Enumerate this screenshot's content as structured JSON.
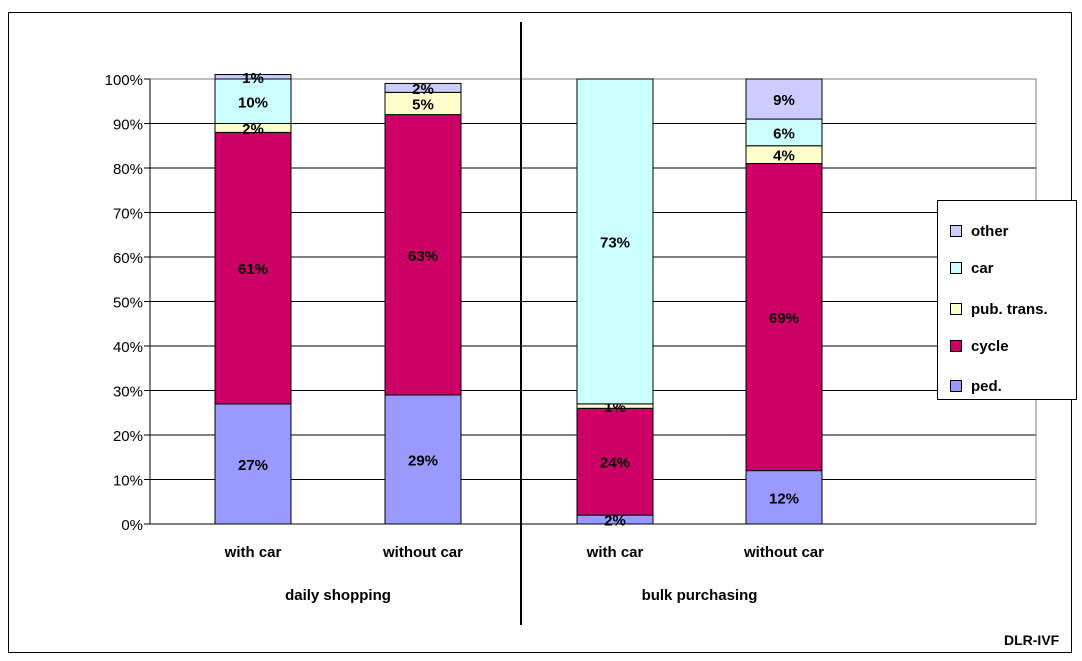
{
  "chart_data": {
    "type": "bar",
    "stacked": true,
    "groups": [
      {
        "label": "daily shopping",
        "categories": [
          "with car",
          "without car"
        ]
      },
      {
        "label": "bulk purchasing",
        "categories": [
          "with car",
          "without car"
        ]
      }
    ],
    "categories": [
      "with car",
      "without car",
      "with car",
      "without car"
    ],
    "series": [
      {
        "name": "ped.",
        "color": "#9999FF",
        "values": [
          27,
          29,
          2,
          12
        ],
        "labels": [
          "27%",
          "29%",
          "2%",
          "12%"
        ]
      },
      {
        "name": "cycle",
        "color": "#CC0066",
        "values": [
          61,
          63,
          24,
          69
        ],
        "labels": [
          "61%",
          "63%",
          "24%",
          "69%"
        ]
      },
      {
        "name": "pub. trans.",
        "color": "#FFFFCC",
        "values": [
          2,
          5,
          1,
          4
        ],
        "labels": [
          "2%",
          "5%",
          "1%",
          "4%"
        ]
      },
      {
        "name": "car",
        "color": "#CCFFFF",
        "values": [
          10,
          0,
          73,
          6
        ],
        "labels": [
          "10%",
          "",
          "73%",
          "6%"
        ]
      },
      {
        "name": "other",
        "color": "#CCCCFF",
        "values": [
          1,
          2,
          0,
          9
        ],
        "labels": [
          "1%",
          "2%",
          "",
          "9%"
        ]
      }
    ],
    "y_ticks": [
      "0%",
      "10%",
      "20%",
      "30%",
      "40%",
      "50%",
      "60%",
      "70%",
      "80%",
      "90%",
      "100%"
    ],
    "ylim": [
      0,
      100
    ],
    "grid": true,
    "legend_position": "right",
    "legend_order": [
      "other",
      "car",
      "pub. trans.",
      "cycle",
      "ped."
    ],
    "source": "DLR-IVF"
  }
}
